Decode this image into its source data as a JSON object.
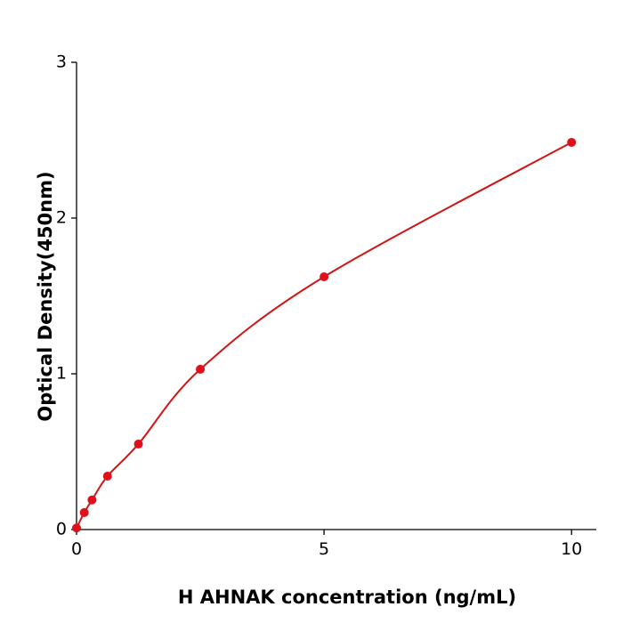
{
  "chart_data": {
    "type": "scatter",
    "x_label": "H  AHNAK concentration (ng/mL)",
    "y_label": "Optical Density(450nm)",
    "x": [
      0,
      0.156,
      0.3125,
      0.625,
      1.25,
      2.5,
      5,
      10
    ],
    "values": [
      0.01,
      0.109,
      0.19,
      0.343,
      0.549,
      1.029,
      1.623,
      2.486
    ],
    "color": "#e0101a",
    "line_color": "#d01515",
    "xlim": [
      0,
      10.5
    ],
    "ylim": [
      0,
      3
    ],
    "xticks": [
      0,
      5,
      10
    ],
    "yticks": [
      0,
      1,
      2,
      3
    ]
  }
}
